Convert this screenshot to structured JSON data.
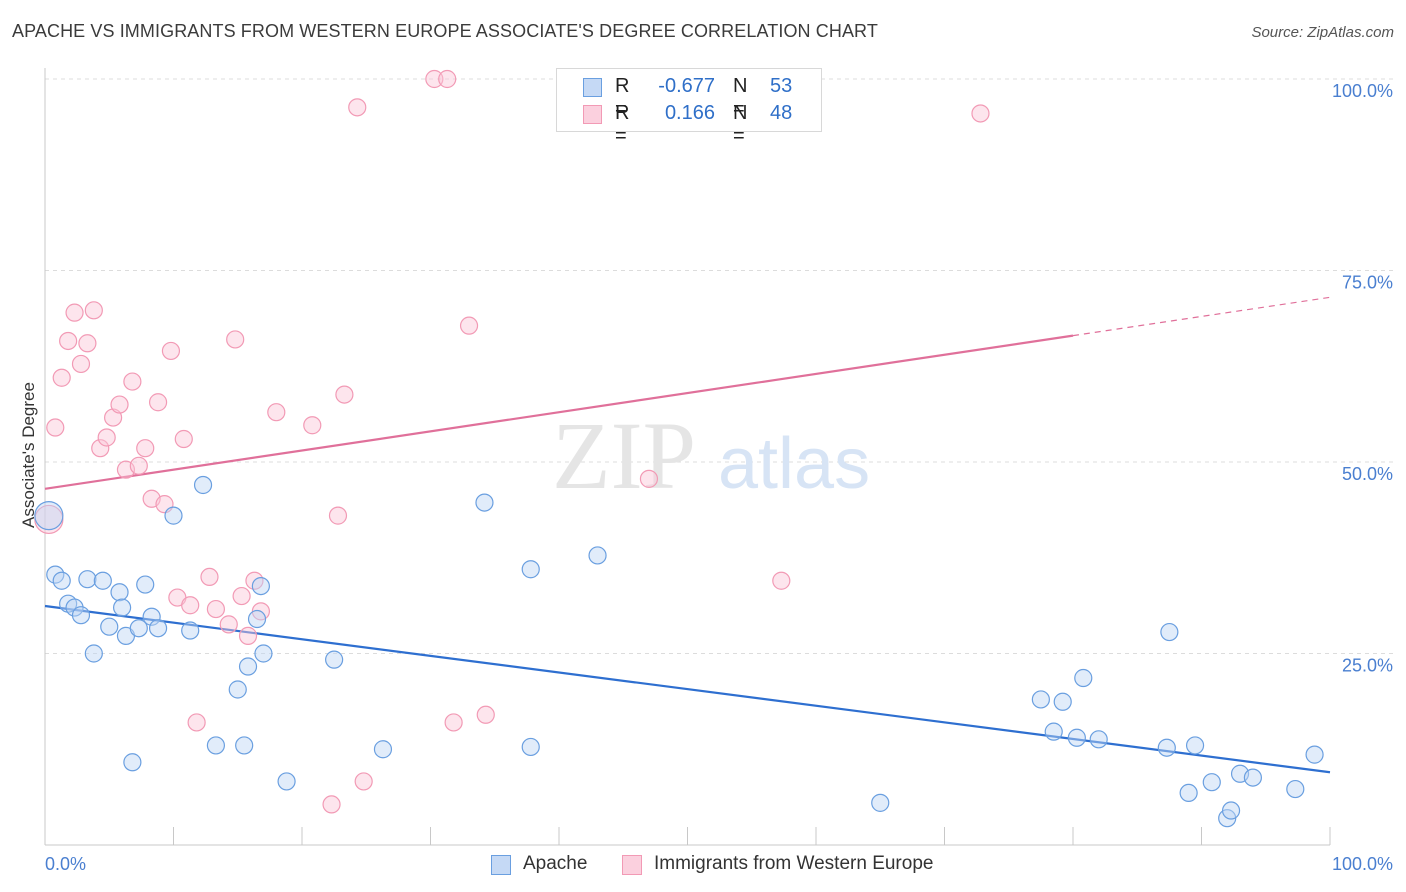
{
  "header": {
    "title": "APACHE VS IMMIGRANTS FROM WESTERN EUROPE ASSOCIATE'S DEGREE CORRELATION CHART",
    "source": "Source: ZipAtlas.com"
  },
  "watermark": {
    "zip": "ZIP",
    "atlas": "atlas"
  },
  "legend": {
    "rows": [
      {
        "r_label": "R =",
        "r_value": "-0.677",
        "n_label": "N =",
        "n_value": "53"
      },
      {
        "r_label": "R =",
        "r_value": "0.166",
        "n_label": "N =",
        "n_value": "48"
      }
    ]
  },
  "bottom_legend": {
    "apache": "Apache",
    "immigrants": "Immigrants from Western Europe"
  },
  "chart_data": {
    "type": "scatter",
    "title": "APACHE VS IMMIGRANTS FROM WESTERN EUROPE ASSOCIATE'S DEGREE CORRELATION CHART",
    "xlabel": "",
    "ylabel": "Associate's Degree",
    "xlim": [
      0,
      100
    ],
    "ylim": [
      0,
      100
    ],
    "x_tick_labels": [
      "0.0%",
      "100.0%"
    ],
    "y_ticks": [
      25,
      50,
      75,
      100
    ],
    "y_tick_labels": [
      "25.0%",
      "50.0%",
      "75.0%",
      "100.0%"
    ],
    "grid": true,
    "legend_position": "top-center",
    "colors": {
      "apache": "#6a9fe0",
      "apache_line": "#2e6fd0",
      "immigrants": "#f29ab5",
      "immigrants_line": "#e0709a"
    },
    "series": [
      {
        "name": "Apache",
        "r": -0.677,
        "n": 53,
        "trend": {
          "x": [
            0,
            100
          ],
          "y": [
            31.2,
            9.5
          ]
        },
        "points": [
          [
            0.3,
            43.0
          ],
          [
            0.8,
            35.3
          ],
          [
            1.3,
            34.5
          ],
          [
            1.8,
            31.5
          ],
          [
            2.3,
            31.0
          ],
          [
            2.8,
            30.0
          ],
          [
            3.3,
            34.7
          ],
          [
            3.8,
            25.0
          ],
          [
            4.5,
            34.5
          ],
          [
            5.0,
            28.5
          ],
          [
            5.8,
            33.0
          ],
          [
            6.0,
            31.0
          ],
          [
            6.3,
            27.3
          ],
          [
            6.8,
            10.8
          ],
          [
            7.3,
            28.3
          ],
          [
            7.8,
            34.0
          ],
          [
            8.3,
            29.8
          ],
          [
            8.8,
            28.3
          ],
          [
            10.0,
            43.0
          ],
          [
            11.3,
            28.0
          ],
          [
            12.3,
            47.0
          ],
          [
            13.3,
            13.0
          ],
          [
            15.0,
            20.3
          ],
          [
            15.8,
            23.3
          ],
          [
            15.5,
            13.0
          ],
          [
            16.5,
            29.5
          ],
          [
            17.0,
            25.0
          ],
          [
            16.8,
            33.8
          ],
          [
            18.8,
            8.3
          ],
          [
            22.5,
            24.2
          ],
          [
            26.3,
            12.5
          ],
          [
            34.2,
            44.7
          ],
          [
            37.8,
            36.0
          ],
          [
            37.8,
            12.8
          ],
          [
            43.0,
            37.8
          ],
          [
            65.0,
            5.5
          ],
          [
            77.5,
            19.0
          ],
          [
            78.5,
            14.8
          ],
          [
            79.2,
            18.7
          ],
          [
            80.3,
            14.0
          ],
          [
            80.8,
            21.8
          ],
          [
            82.0,
            13.8
          ],
          [
            87.3,
            12.7
          ],
          [
            87.5,
            27.8
          ],
          [
            89.0,
            6.8
          ],
          [
            89.5,
            13.0
          ],
          [
            90.8,
            8.2
          ],
          [
            92.0,
            3.5
          ],
          [
            92.3,
            4.5
          ],
          [
            93.0,
            9.3
          ],
          [
            94.0,
            8.8
          ],
          [
            97.3,
            7.3
          ],
          [
            98.8,
            11.8
          ]
        ]
      },
      {
        "name": "Immigrants from Western Europe",
        "r": 0.166,
        "n": 48,
        "trend": {
          "x": [
            0,
            80
          ],
          "y": [
            46.5,
            66.5
          ]
        },
        "trend_dashed": {
          "x": [
            80,
            100
          ],
          "y": [
            66.5,
            71.5
          ]
        },
        "points": [
          [
            0.3,
            42.5
          ],
          [
            0.8,
            54.5
          ],
          [
            1.3,
            61.0
          ],
          [
            1.8,
            65.8
          ],
          [
            2.3,
            69.5
          ],
          [
            2.8,
            62.8
          ],
          [
            3.3,
            65.5
          ],
          [
            3.8,
            69.8
          ],
          [
            4.3,
            51.8
          ],
          [
            4.8,
            53.2
          ],
          [
            5.3,
            55.8
          ],
          [
            5.8,
            57.5
          ],
          [
            6.3,
            49.0
          ],
          [
            6.8,
            60.5
          ],
          [
            7.3,
            49.5
          ],
          [
            7.8,
            51.8
          ],
          [
            8.3,
            45.2
          ],
          [
            8.8,
            57.8
          ],
          [
            9.3,
            44.5
          ],
          [
            9.8,
            64.5
          ],
          [
            10.3,
            32.3
          ],
          [
            10.8,
            53.0
          ],
          [
            11.3,
            31.3
          ],
          [
            11.8,
            16.0
          ],
          [
            12.8,
            35.0
          ],
          [
            13.3,
            30.8
          ],
          [
            14.3,
            28.8
          ],
          [
            14.8,
            66.0
          ],
          [
            15.3,
            32.5
          ],
          [
            15.8,
            27.3
          ],
          [
            16.3,
            34.5
          ],
          [
            16.8,
            30.5
          ],
          [
            18.0,
            56.5
          ],
          [
            20.8,
            54.8
          ],
          [
            22.3,
            5.3
          ],
          [
            22.8,
            43.0
          ],
          [
            23.3,
            58.8
          ],
          [
            24.3,
            96.3
          ],
          [
            24.8,
            8.3
          ],
          [
            30.3,
            100.0
          ],
          [
            31.3,
            100.0
          ],
          [
            31.8,
            16.0
          ],
          [
            33.0,
            67.8
          ],
          [
            34.3,
            17.0
          ],
          [
            47.0,
            47.8
          ],
          [
            51.3,
            100.0
          ],
          [
            57.3,
            34.5
          ],
          [
            72.8,
            95.5
          ]
        ]
      }
    ]
  }
}
